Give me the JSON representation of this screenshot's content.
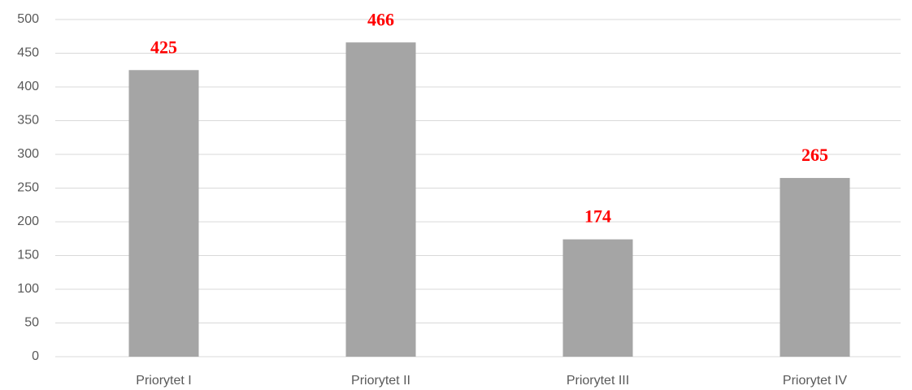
{
  "chart_data": {
    "type": "bar",
    "categories": [
      "Priorytet I",
      "Priorytet II",
      "Priorytet III",
      "Priorytet IV"
    ],
    "values": [
      425,
      466,
      174,
      265
    ],
    "color": "#a5a5a5",
    "label_color": "#ff0000",
    "ylim": [
      0,
      500
    ],
    "yticks": [
      0,
      50,
      100,
      150,
      200,
      250,
      300,
      350,
      400,
      450,
      500
    ],
    "grid": true
  }
}
